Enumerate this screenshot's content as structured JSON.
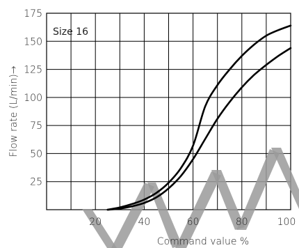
{
  "chart_data": {
    "type": "line",
    "xlabel": "Command value %",
    "ylabel": "Flow rate (L/min)→",
    "annotation": "Size 16",
    "xlim": [
      0,
      100
    ],
    "ylim": [
      0,
      175
    ],
    "x_ticks": [
      20,
      40,
      60,
      80,
      100
    ],
    "y_ticks": [
      25,
      50,
      75,
      100,
      125,
      150,
      175
    ],
    "grid": true,
    "series": [
      {
        "x": [
          25,
          30,
          35,
          40,
          45,
          50,
          55,
          60,
          65,
          70,
          75,
          80,
          85,
          90,
          95,
          100
        ],
        "y": [
          0,
          2,
          5,
          9,
          15,
          24,
          37,
          57,
          92,
          111,
          125,
          137,
          147,
          155,
          160,
          164
        ],
        "color": "#000000"
      },
      {
        "x": [
          25,
          30,
          35,
          40,
          45,
          50,
          55,
          60,
          65,
          70,
          75,
          80,
          85,
          90,
          95,
          100
        ],
        "y": [
          0,
          1,
          3,
          6,
          11,
          19,
          30,
          45,
          63,
          81,
          96,
          109,
          120,
          129,
          137,
          144
        ],
        "color": "#000000"
      }
    ]
  },
  "colors": {
    "watermark": "#9a9a9a",
    "line": "#000000"
  }
}
